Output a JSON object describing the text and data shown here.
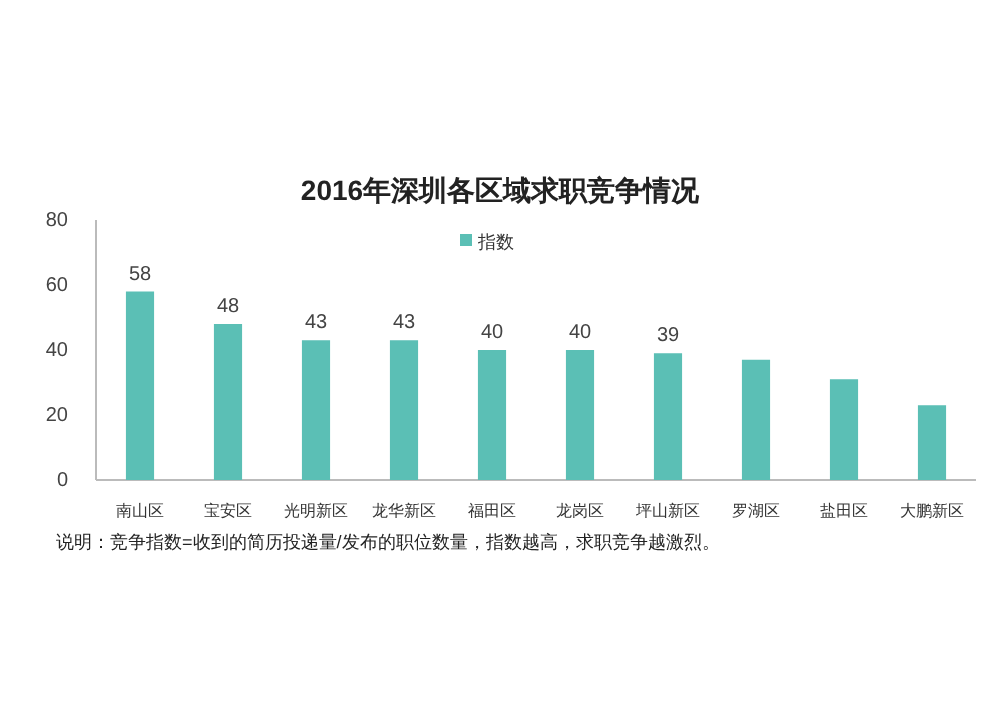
{
  "chart_data": {
    "type": "bar",
    "title": "2016年深圳各区域求职竞争情况",
    "categories": [
      "南山区",
      "宝安区",
      "光明新区",
      "龙华新区",
      "福田区",
      "龙岗区",
      "坪山新区",
      "罗湖区",
      "盐田区",
      "大鹏新区"
    ],
    "series": [
      {
        "name": "指数",
        "color": "#5bbfb5",
        "values": [
          58,
          48,
          43,
          43,
          40,
          40,
          39,
          37,
          31,
          23
        ],
        "value_labels": [
          "58",
          "48",
          "43",
          "43",
          "40",
          "40",
          "39",
          null,
          null,
          null
        ]
      }
    ],
    "ylim": [
      0,
      80
    ],
    "yticks": [
      0,
      20,
      40,
      60,
      80
    ],
    "grid": false,
    "legend": "top",
    "annotations": [
      "说明：竞争指数=收到的简历投递量/发布的职位数量，指数越高，求职竞争越激烈。"
    ]
  }
}
